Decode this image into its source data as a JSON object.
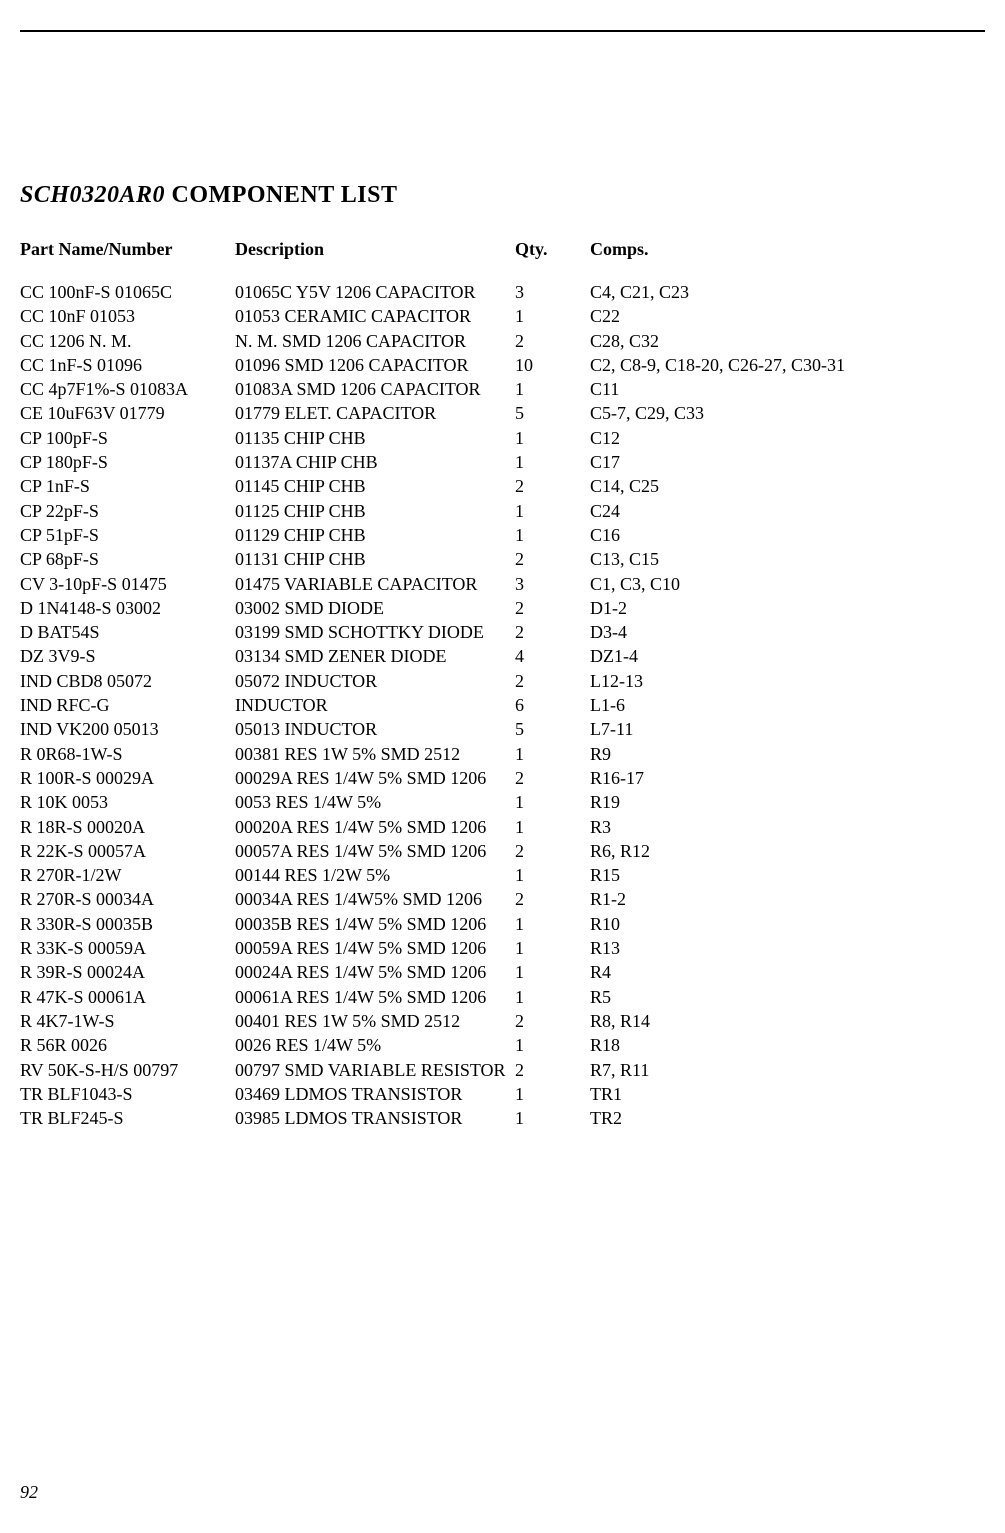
{
  "title_prefix": "SCH0320AR0",
  "title_suffix": " COMPONENT LIST",
  "headers": {
    "part": "Part Name/Number",
    "description": "Description",
    "qty": "Qty.",
    "comps": "Comps."
  },
  "rows": [
    {
      "part": "CC 100nF-S 01065C",
      "desc": "01065C Y5V 1206 CAPACITOR",
      "qty": "3",
      "comps": "C4, C21, C23"
    },
    {
      "part": "CC 10nF 01053",
      "desc": "01053 CERAMIC CAPACITOR",
      "qty": "1",
      "comps": "C22"
    },
    {
      "part": "CC 1206 N. M.",
      "desc": "N. M. SMD 1206 CAPACITOR",
      "qty": "2",
      "comps": "C28, C32"
    },
    {
      "part": "CC 1nF-S 01096",
      "desc": "01096 SMD 1206 CAPACITOR",
      "qty": "10",
      "comps": "C2, C8-9, C18-20, C26-27, C30-31"
    },
    {
      "part": "CC 4p7F1%-S 01083A",
      "desc": "01083A SMD 1206 CAPACITOR",
      "qty": "1",
      "comps": "C11"
    },
    {
      "part": "CE 10uF63V 01779",
      "desc": "01779 ELET. CAPACITOR",
      "qty": "5",
      "comps": "C5-7, C29, C33"
    },
    {
      "part": "CP 100pF-S",
      "desc": "01135 CHIP CHB",
      "qty": "1",
      "comps": "C12"
    },
    {
      "part": "CP 180pF-S",
      "desc": "01137A CHIP CHB",
      "qty": "1",
      "comps": "C17"
    },
    {
      "part": "CP 1nF-S",
      "desc": "01145 CHIP CHB",
      "qty": "2",
      "comps": "C14, C25"
    },
    {
      "part": "CP 22pF-S",
      "desc": "01125 CHIP CHB",
      "qty": "1",
      "comps": "C24"
    },
    {
      "part": "CP 51pF-S",
      "desc": "01129 CHIP CHB",
      "qty": "1",
      "comps": "C16"
    },
    {
      "part": "CP 68pF-S",
      "desc": "01131 CHIP CHB",
      "qty": "2",
      "comps": "C13, C15"
    },
    {
      "part": "CV 3-10pF-S 01475",
      "desc": "01475 VARIABLE CAPACITOR",
      "qty": "3",
      "comps": "C1, C3, C10"
    },
    {
      "part": "D 1N4148-S 03002",
      "desc": "03002 SMD DIODE",
      "qty": "2",
      "comps": "D1-2"
    },
    {
      "part": "D BAT54S",
      "desc": "03199 SMD SCHOTTKY DIODE",
      "qty": "2",
      "comps": "D3-4"
    },
    {
      "part": "DZ 3V9-S",
      "desc": "03134 SMD ZENER DIODE",
      "qty": "4",
      "comps": "DZ1-4"
    },
    {
      "part": "IND CBD8 05072",
      "desc": "05072 INDUCTOR",
      "qty": "2",
      "comps": "L12-13"
    },
    {
      "part": "IND RFC-G",
      "desc": "INDUCTOR",
      "qty": "6",
      "comps": "L1-6"
    },
    {
      "part": "IND VK200 05013",
      "desc": "05013 INDUCTOR",
      "qty": "5",
      "comps": "L7-11"
    },
    {
      "part": "R 0R68-1W-S",
      "desc": "00381 RES 1W 5% SMD 2512",
      "qty": "1",
      "comps": "R9"
    },
    {
      "part": "R 100R-S 00029A",
      "desc": "00029A RES 1/4W 5% SMD 1206",
      "qty": "2",
      "comps": "R16-17"
    },
    {
      "part": "R 10K 0053",
      "desc": "0053 RES 1/4W 5%",
      "qty": "1",
      "comps": "R19"
    },
    {
      "part": "R 18R-S 00020A",
      "desc": "00020A RES 1/4W 5% SMD 1206",
      "qty": "1",
      "comps": "R3"
    },
    {
      "part": "R 22K-S 00057A",
      "desc": "00057A RES 1/4W 5% SMD 1206",
      "qty": "2",
      "comps": "R6, R12"
    },
    {
      "part": "R 270R-1/2W",
      "desc": "00144 RES 1/2W 5%",
      "qty": "1",
      "comps": "R15"
    },
    {
      "part": "R 270R-S 00034A",
      "desc": "00034A RES 1/4W5% SMD 1206",
      "qty": "2",
      "comps": "R1-2"
    },
    {
      "part": "R 330R-S 00035B",
      "desc": "00035B RES 1/4W 5% SMD 1206",
      "qty": "1",
      "comps": "R10"
    },
    {
      "part": "R 33K-S 00059A",
      "desc": "00059A RES 1/4W 5% SMD 1206",
      "qty": "1",
      "comps": "R13"
    },
    {
      "part": "R 39R-S 00024A",
      "desc": "00024A RES 1/4W 5% SMD 1206",
      "qty": "1",
      "comps": "R4"
    },
    {
      "part": "R 47K-S 00061A",
      "desc": "00061A RES 1/4W 5% SMD 1206",
      "qty": "1",
      "comps": "R5"
    },
    {
      "part": "R 4K7-1W-S",
      "desc": "00401 RES 1W 5% SMD 2512",
      "qty": "2",
      "comps": "R8, R14"
    },
    {
      "part": "R 56R 0026",
      "desc": "0026 RES 1/4W 5%",
      "qty": "1",
      "comps": "R18"
    },
    {
      "part": "RV 50K-S-H/S 00797",
      "desc": "00797 SMD VARIABLE RESISTOR",
      "qty": "2",
      "comps": "R7, R11"
    },
    {
      "part": "TR BLF1043-S",
      "desc": "03469  LDMOS TRANSISTOR",
      "qty": "1",
      "comps": "TR1"
    },
    {
      "part": "TR BLF245-S",
      "desc": "03985  LDMOS TRANSISTOR",
      "qty": "1",
      "comps": "TR2"
    }
  ],
  "page_number": "92"
}
